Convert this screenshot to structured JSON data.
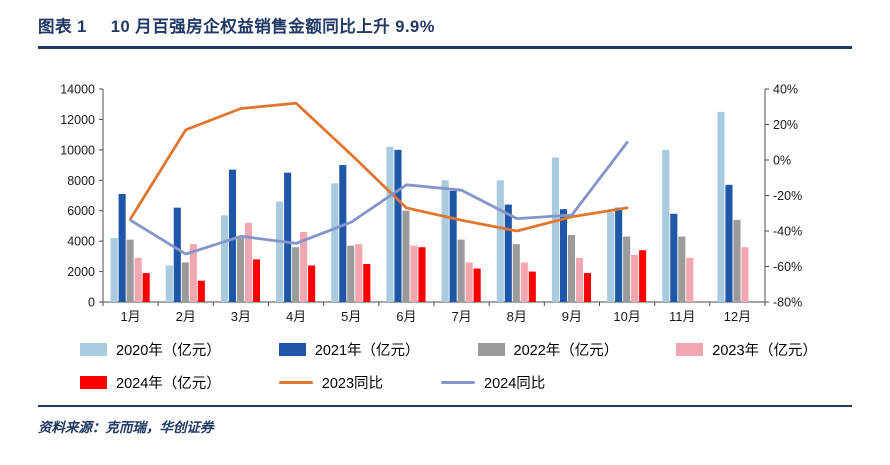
{
  "header": {
    "figure_label": "图表 1",
    "title": "10 月百强房企权益销售金额同比上升 9.9%"
  },
  "footer": {
    "source": "资料来源：克而瑞，华创证券"
  },
  "colors": {
    "navy_accent": "#1F3864",
    "axis_line": "#4d4d4d",
    "axis_text": "#1a1a1a"
  },
  "chart_data": {
    "type": "bar",
    "overlay": "line",
    "title": "10 月百强房企权益销售金额同比上升 9.9%",
    "grid": false,
    "legend_position": "bottom",
    "categories": [
      "1月",
      "2月",
      "3月",
      "4月",
      "5月",
      "6月",
      "7月",
      "8月",
      "9月",
      "10月",
      "11月",
      "12月"
    ],
    "left_axis": {
      "min": 0,
      "max": 14000,
      "ticks": [
        0,
        2000,
        4000,
        6000,
        8000,
        10000,
        12000,
        14000
      ],
      "suffix": ""
    },
    "right_axis": {
      "min": -80,
      "max": 40,
      "ticks": [
        -80,
        -60,
        -40,
        -20,
        0,
        20,
        40
      ],
      "suffix": "%"
    },
    "bar_series": [
      {
        "name": "2020年（亿元）",
        "color": "#A9CBDF",
        "axis": "left",
        "values": [
          4200,
          2400,
          5700,
          6600,
          7800,
          10200,
          8000,
          8000,
          9500,
          5900,
          10000,
          12500
        ]
      },
      {
        "name": "2021年（亿元）",
        "color": "#1F57A8",
        "axis": "left",
        "values": [
          7100,
          6200,
          8700,
          8500,
          9000,
          10000,
          7300,
          6400,
          6100,
          6200,
          5800,
          7700
        ]
      },
      {
        "name": "2022年（亿元）",
        "color": "#9B9B9B",
        "axis": "left",
        "values": [
          4100,
          2600,
          4200,
          3600,
          3700,
          6000,
          4100,
          3800,
          4400,
          4300,
          4300,
          5400
        ]
      },
      {
        "name": "2023年（亿元）",
        "color": "#F2A6B0",
        "axis": "left",
        "values": [
          2900,
          3800,
          5200,
          4600,
          3800,
          3700,
          2600,
          2600,
          2900,
          3100,
          2900,
          3600
        ]
      },
      {
        "name": "2024年（亿元）",
        "color": "#FC0000",
        "axis": "left",
        "values": [
          1900,
          1400,
          2800,
          2400,
          2500,
          3600,
          2200,
          2000,
          1900,
          3400,
          null,
          null
        ]
      }
    ],
    "line_series": [
      {
        "name": "2023同比",
        "color": "#E0762F",
        "axis": "right",
        "values": [
          -33,
          17,
          29,
          32,
          3,
          -27,
          -34,
          -40,
          -32,
          -27,
          null,
          null
        ]
      },
      {
        "name": "2024同比",
        "color": "#8496C9",
        "axis": "right",
        "values": [
          -34,
          -53,
          -43,
          -47,
          -35,
          -14,
          -17,
          -33,
          -31,
          9.9,
          null,
          null
        ]
      }
    ],
    "legend_rows": [
      [
        "2020年（亿元）",
        "2021年（亿元）",
        "2022年（亿元）",
        "2023年（亿元）"
      ],
      [
        "2024年（亿元）",
        "2023同比",
        "2024同比"
      ]
    ]
  }
}
